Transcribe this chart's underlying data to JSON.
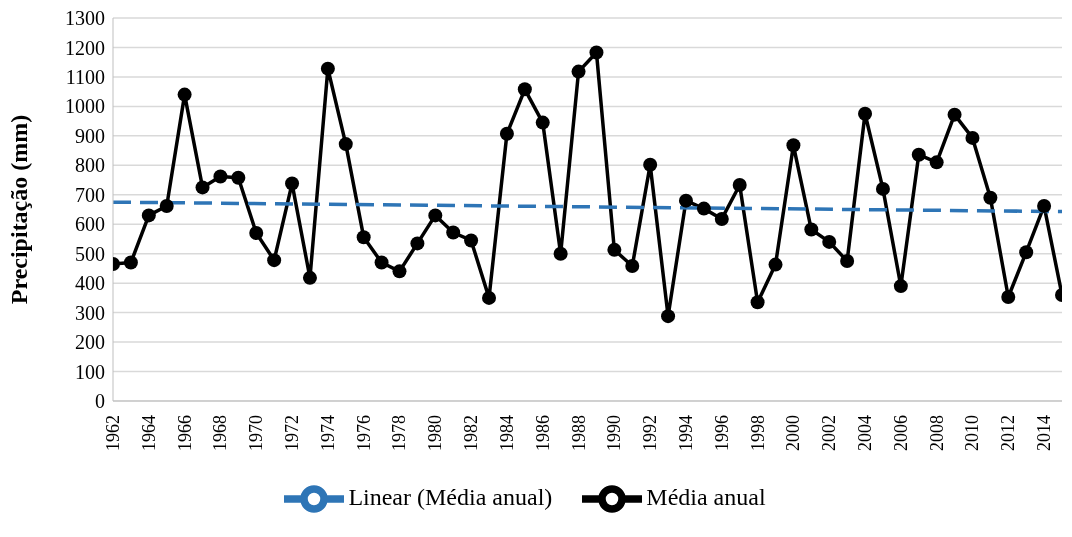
{
  "chart_data": {
    "type": "line",
    "ylabel": "Precipitação (mm)",
    "xlim": [
      1962,
      2015
    ],
    "xticks": [
      1962,
      1964,
      1966,
      1968,
      1970,
      1972,
      1974,
      1976,
      1978,
      1980,
      1982,
      1984,
      1986,
      1988,
      1990,
      1992,
      1994,
      1996,
      1998,
      2000,
      2002,
      2004,
      2006,
      2008,
      2010,
      2012,
      2014
    ],
    "ylim": [
      0,
      1300
    ],
    "yticks": [
      0,
      100,
      200,
      300,
      400,
      500,
      600,
      700,
      800,
      900,
      1000,
      1100,
      1200,
      1300
    ],
    "grid": "y",
    "legend": "bottom",
    "marker": "circle",
    "series": [
      {
        "name": "Média anual",
        "color": "#000000",
        "x": [
          1962,
          1963,
          1964,
          1965,
          1966,
          1967,
          1968,
          1969,
          1970,
          1971,
          1972,
          1973,
          1974,
          1975,
          1976,
          1977,
          1978,
          1979,
          1980,
          1981,
          1982,
          1983,
          1984,
          1985,
          1986,
          1987,
          1988,
          1989,
          1990,
          1991,
          1992,
          1993,
          1994,
          1995,
          1996,
          1997,
          1998,
          1999,
          2000,
          2001,
          2002,
          2003,
          2004,
          2005,
          2006,
          2007,
          2008,
          2009,
          2010,
          2011,
          2012,
          2013,
          2014,
          2015
        ],
        "values": [
          465,
          470,
          630,
          662,
          1040,
          725,
          762,
          758,
          570,
          478,
          738,
          418,
          1128,
          872,
          556,
          470,
          440,
          535,
          630,
          572,
          545,
          350,
          907,
          1058,
          945,
          500,
          1118,
          1183,
          513,
          458,
          802,
          288,
          680,
          653,
          618,
          733,
          335,
          463,
          868,
          582,
          540,
          475,
          975,
          720,
          390,
          836,
          810,
          972,
          893,
          690,
          353,
          505,
          662,
          360
        ]
      },
      {
        "name": "Linear (Média anual)",
        "color": "#2e75b6",
        "type": "line",
        "marker": "none",
        "line_style": "dashed",
        "x": [
          1962,
          2015
        ],
        "values": [
          675,
          643
        ]
      }
    ]
  }
}
